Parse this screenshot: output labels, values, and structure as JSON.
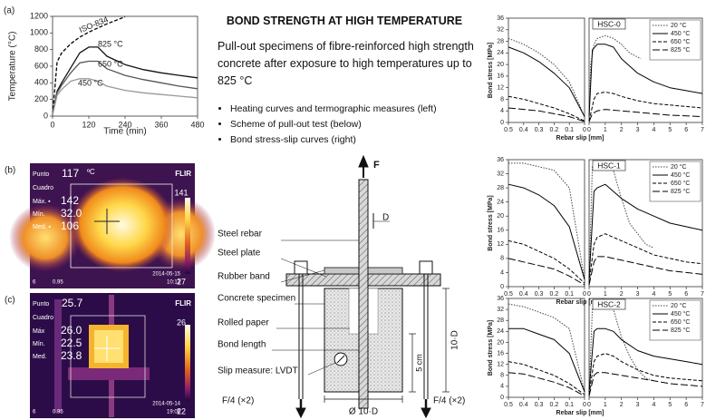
{
  "chart_data": [
    {
      "type": "line",
      "panel": "(a)",
      "xlabel": "Time (min)",
      "ylabel": "Temperature (°C)",
      "xlim": [
        0,
        480
      ],
      "xticks": [
        0,
        120,
        240,
        360,
        480
      ],
      "ylim": [
        0,
        1200
      ],
      "yticks": [
        0,
        200,
        400,
        600,
        800,
        1000,
        1200
      ],
      "x": [
        0,
        15,
        30,
        60,
        90,
        120,
        150,
        180,
        240,
        300,
        360,
        420,
        480
      ],
      "series": [
        {
          "name": "ISO-834",
          "color": "#000000",
          "dash": "4,2",
          "values": [
            20,
            650,
            760,
            870,
            950,
            1010,
            1060,
            1110,
            1195,
            null,
            null,
            null,
            null
          ]
        },
        {
          "name": "825 °C",
          "color": "#111111",
          "dash": "none",
          "values": [
            20,
            300,
            400,
            580,
            760,
            830,
            830,
            720,
            620,
            560,
            520,
            490,
            460
          ]
        },
        {
          "name": "650 °C",
          "color": "#555555",
          "dash": "none",
          "values": [
            20,
            280,
            370,
            520,
            640,
            660,
            660,
            570,
            490,
            440,
            400,
            360,
            330
          ]
        },
        {
          "name": "450 °C",
          "color": "#999999",
          "dash": "none",
          "values": [
            20,
            250,
            320,
            420,
            450,
            450,
            420,
            360,
            310,
            280,
            260,
            240,
            220
          ]
        }
      ]
    },
    {
      "type": "line",
      "title": "HSC-0",
      "xlabel": "Rebar slip [mm]",
      "ylabel": "Bond stress [MPa]",
      "ylim": [
        0,
        36
      ],
      "yticks": [
        0,
        4,
        8,
        12,
        16,
        20,
        24,
        28,
        32,
        36
      ],
      "panels": [
        {
          "xlim": [
            0.5,
            0
          ],
          "xticks": [
            0.5,
            0.4,
            0.3,
            0.2,
            0.1,
            0
          ]
        },
        {
          "xlim": [
            0,
            7
          ],
          "xticks": [
            0,
            1,
            2,
            3,
            4,
            5,
            6,
            7
          ]
        }
      ],
      "series": [
        {
          "name": "20 °C",
          "color": "#444444",
          "dash": "1.5,1.5",
          "parts": [
            {
              "x": [
                0.5,
                0.4,
                0.3,
                0.2,
                0.1,
                0
              ],
              "values": [
                29,
                27,
                24,
                20,
                14,
                2
              ]
            },
            {
              "x": [
                0,
                0.1,
                0.3,
                0.5,
                1,
                1.5,
                2,
                2.5,
                3.2
              ],
              "values": [
                2,
                20,
                27,
                29,
                30,
                29,
                27,
                24,
                22
              ]
            }
          ]
        },
        {
          "name": "450 °C",
          "color": "#000000",
          "dash": "none",
          "parts": [
            {
              "x": [
                0.5,
                0.4,
                0.3,
                0.2,
                0.1,
                0
              ],
              "values": [
                26,
                24,
                21,
                17,
                12,
                2
              ]
            },
            {
              "x": [
                0,
                0.2,
                0.5,
                1,
                1.5,
                2,
                3,
                4,
                5,
                6,
                7
              ],
              "values": [
                2,
                25,
                27,
                27,
                26,
                22,
                17,
                14,
                12,
                11,
                10
              ]
            }
          ]
        },
        {
          "name": "650 °C",
          "color": "#000000",
          "dash": "4,2",
          "parts": [
            {
              "x": [
                0.5,
                0.4,
                0.3,
                0.2,
                0.1,
                0
              ],
              "values": [
                9,
                8,
                6.5,
                5,
                3,
                0.5
              ]
            },
            {
              "x": [
                0,
                0.3,
                0.5,
                1,
                1.5,
                2,
                3,
                4,
                5,
                6,
                7
              ],
              "values": [
                0.5,
                8,
                10,
                10.5,
                10,
                9,
                7.5,
                6.5,
                6,
                5.5,
                5
              ]
            }
          ]
        },
        {
          "name": "825 °C",
          "color": "#000000",
          "dash": "8,3",
          "parts": [
            {
              "x": [
                0.5,
                0.4,
                0.3,
                0.2,
                0.1,
                0
              ],
              "values": [
                5,
                4.5,
                4,
                3,
                2,
                0.3
              ]
            },
            {
              "x": [
                0,
                0.2,
                0.5,
                1,
                2,
                3,
                4,
                5,
                6,
                7
              ],
              "values": [
                0.3,
                3,
                4,
                4.5,
                4,
                3.5,
                3,
                2.5,
                2.3,
                2
              ]
            }
          ]
        }
      ]
    },
    {
      "type": "line",
      "title": "HSC-1",
      "xlabel": "Rebar slip [mm]",
      "ylabel": "Bond stress [MPa]",
      "ylim": [
        0,
        36
      ],
      "yticks": [
        0,
        4,
        8,
        12,
        16,
        20,
        24,
        28,
        32,
        36
      ],
      "panels": [
        {
          "xlim": [
            0.5,
            0
          ],
          "xticks": [
            0.5,
            0.4,
            0.3,
            0.2,
            0.1,
            0
          ]
        },
        {
          "xlim": [
            0,
            7
          ],
          "xticks": [
            0,
            1,
            2,
            3,
            4,
            5,
            6,
            7
          ]
        }
      ],
      "series": [
        {
          "name": "20 °C",
          "color": "#444444",
          "dash": "1.5,1.5",
          "parts": [
            {
              "x": [
                0.5,
                0.4,
                0.3,
                0.2,
                0.1,
                0
              ],
              "values": [
                35,
                35,
                34,
                33,
                28,
                2
              ]
            },
            {
              "x": [
                0,
                0.2,
                0.5,
                1,
                1.5,
                2,
                2.5,
                3,
                3.5,
                4
              ],
              "values": [
                2,
                34,
                35,
                35,
                33,
                25,
                18,
                15,
                12,
                11
              ]
            }
          ]
        },
        {
          "name": "450 °C",
          "color": "#000000",
          "dash": "none",
          "parts": [
            {
              "x": [
                0.5,
                0.4,
                0.3,
                0.2,
                0.1,
                0
              ],
              "values": [
                29,
                28,
                26,
                23,
                17,
                2
              ]
            },
            {
              "x": [
                0,
                0.3,
                0.5,
                1,
                1.5,
                2,
                3,
                4,
                5,
                6,
                7
              ],
              "values": [
                2,
                27,
                28,
                29,
                27,
                25,
                22,
                20,
                18,
                17,
                16
              ]
            }
          ]
        },
        {
          "name": "650 °C",
          "color": "#000000",
          "dash": "4,2",
          "parts": [
            {
              "x": [
                0.5,
                0.4,
                0.3,
                0.2,
                0.1,
                0
              ],
              "values": [
                13,
                12,
                10,
                8,
                5,
                1
              ]
            },
            {
              "x": [
                0,
                0.3,
                0.5,
                1,
                1.5,
                2,
                3,
                4,
                5,
                6,
                7
              ],
              "values": [
                1,
                12,
                14,
                15,
                14,
                13,
                11,
                9,
                8,
                7,
                6.5
              ]
            }
          ]
        },
        {
          "name": "825 °C",
          "color": "#000000",
          "dash": "8,3",
          "parts": [
            {
              "x": [
                0.5,
                0.4,
                0.3,
                0.2,
                0.1,
                0
              ],
              "values": [
                8,
                7,
                6,
                5,
                3,
                0.5
              ]
            },
            {
              "x": [
                0,
                0.3,
                0.5,
                1,
                2,
                3,
                4,
                5,
                6,
                7
              ],
              "values": [
                0.5,
                7,
                8.5,
                8.5,
                7.5,
                6.5,
                5.5,
                4.5,
                4,
                3.5
              ]
            }
          ]
        }
      ]
    },
    {
      "type": "line",
      "title": "HSC-2",
      "xlabel": "Rebar slip [mm]",
      "ylabel": "Bond stress [MPa]",
      "ylim": [
        0,
        36
      ],
      "yticks": [
        0,
        4,
        8,
        12,
        16,
        20,
        24,
        28,
        32,
        36
      ],
      "panels": [
        {
          "xlim": [
            0.5,
            0
          ],
          "xticks": [
            0.5,
            0.4,
            0.3,
            0.2,
            0.1,
            0
          ]
        },
        {
          "xlim": [
            0,
            7
          ],
          "xticks": [
            0,
            1,
            2,
            3,
            4,
            5,
            6,
            7
          ]
        }
      ],
      "series": [
        {
          "name": "20 °C",
          "color": "#444444",
          "dash": "1.5,1.5",
          "parts": [
            {
              "x": [
                0.5,
                0.4,
                0.3,
                0.2,
                0.1,
                0
              ],
              "values": [
                34,
                33,
                31,
                29,
                25,
                2
              ]
            },
            {
              "x": [
                0,
                0.2,
                0.5,
                1,
                1.5,
                2,
                2.5,
                3,
                3.5,
                4
              ],
              "values": [
                2,
                32,
                34,
                34,
                32,
                22,
                15,
                10,
                7,
                6
              ]
            }
          ]
        },
        {
          "name": "450 °C",
          "color": "#000000",
          "dash": "none",
          "parts": [
            {
              "x": [
                0.5,
                0.4,
                0.3,
                0.2,
                0.1,
                0
              ],
              "values": [
                25,
                25,
                23,
                21,
                16,
                2
              ]
            },
            {
              "x": [
                0,
                0.3,
                0.5,
                1,
                1.5,
                2,
                3,
                4,
                5,
                6,
                7
              ],
              "values": [
                2,
                24,
                25,
                25,
                24,
                21,
                17,
                15,
                14,
                13,
                12
              ]
            }
          ]
        },
        {
          "name": "650 °C",
          "color": "#000000",
          "dash": "4,2",
          "parts": [
            {
              "x": [
                0.5,
                0.4,
                0.3,
                0.2,
                0.1,
                0
              ],
              "values": [
                13,
                12,
                10,
                8,
                5,
                1
              ]
            },
            {
              "x": [
                0,
                0.3,
                0.5,
                1,
                1.5,
                2,
                3,
                4,
                5,
                6,
                7
              ],
              "values": [
                1,
                13,
                15,
                16,
                15,
                13,
                10,
                8,
                7,
                6.5,
                6
              ]
            }
          ]
        },
        {
          "name": "825 °C",
          "color": "#000000",
          "dash": "8,3",
          "parts": [
            {
              "x": [
                0.5,
                0.4,
                0.3,
                0.2,
                0.1,
                0
              ],
              "values": [
                9,
                8.5,
                7,
                5.5,
                3.5,
                0.5
              ]
            },
            {
              "x": [
                0,
                0.3,
                0.5,
                1,
                2,
                3,
                4,
                5,
                6,
                7
              ],
              "values": [
                0.5,
                8,
                9,
                9,
                8,
                7,
                6,
                5,
                4.5,
                4
              ]
            }
          ]
        }
      ]
    }
  ],
  "thermal_images": [
    {
      "panel": "(b)",
      "point_label": "Punto",
      "point_value": "117",
      "unit": "ºC",
      "box_label": "Cuadro",
      "max_label": "Máx. ▪",
      "max_value": "142",
      "min_label": "Mín.",
      "min_value": "32.0",
      "mean_label": "Med. ▪",
      "mean_value": "106",
      "scale_max": "141",
      "scale_min": "27",
      "brand": "FLIR",
      "date": "2014-05-15",
      "time": "10:13",
      "distance": "6",
      "emissivity": "0.95"
    },
    {
      "panel": "(c)",
      "point_label": "Punto",
      "point_value": "25.7",
      "box_label": "Cuadro",
      "max_label": "Máx",
      "max_value": "26.0",
      "min_label": "Mín.",
      "min_value": "22.5",
      "mean_label": "Med.",
      "mean_value": "23.8",
      "scale_max": "26",
      "scale_min": "22",
      "brand": "FLIR",
      "date": "2014-05-14",
      "time": "19:06",
      "distance": "6",
      "emissivity": "0.95"
    }
  ],
  "text": {
    "title": "BOND STRENGTH AT HIGH TEMPERATURE",
    "description": "Pull-out specimens of fibre-reinforced high strength concrete after exposure to high temperatures up to 825 °C",
    "bullets": [
      "Heating curves and termographic measures (left)",
      "Scheme of pull-out test (below)",
      "Bond stress-slip curves (right)"
    ]
  },
  "diagram": {
    "force": "F",
    "diameter": "D",
    "labels": [
      "Steel rebar",
      "Steel plate",
      "Rubber band",
      "Concrete specimen",
      "Rolled paper",
      "Bond length",
      "Slip measure: LVDT"
    ],
    "reaction_left": "F/4 (×2)",
    "reaction_right": "F/4 (×2)",
    "height": "10·D",
    "bond_depth": "5 cm",
    "width": "Ø 10·D"
  }
}
